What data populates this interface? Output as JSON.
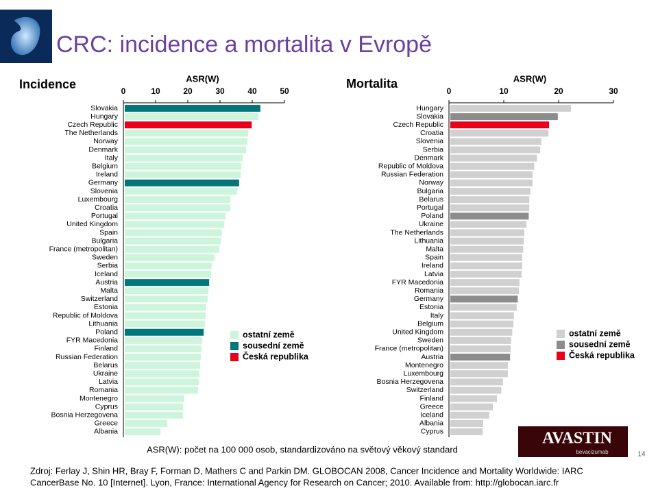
{
  "header": {
    "title": "CRC: incidence a mortalita v Evropě"
  },
  "chart_data": [
    {
      "type": "bar",
      "orientation": "horizontal",
      "title": "Incidence",
      "x_label": "ASR(W)",
      "xlim": [
        0,
        50
      ],
      "xticks": [
        0,
        10,
        20,
        30,
        40,
        50
      ],
      "categories": [
        "Slovakia",
        "Hungary",
        "Czech Republic",
        "The Netherlands",
        "Norway",
        "Denmark",
        "Italy",
        "Belgium",
        "Ireland",
        "Germany",
        "Slovenia",
        "Luxembourg",
        "Croatia",
        "Portugal",
        "United Kingdom",
        "Spain",
        "Bulgaria",
        "France (metropolitan)",
        "Sweden",
        "Serbia",
        "Iceland",
        "Austria",
        "Malta",
        "Switzerland",
        "Estonia",
        "Republic of Moldova",
        "Lithuania",
        "Poland",
        "FYR Macedonia",
        "Finland",
        "Russian Federation",
        "Belarus",
        "Ukraine",
        "Latvia",
        "Romania",
        "Montenegro",
        "Cyprus",
        "Bosnia Herzegovena",
        "Greece",
        "Albania"
      ],
      "values": [
        42.1,
        41.5,
        39.4,
        38.3,
        38.1,
        37.7,
        36.6,
        36.2,
        36.0,
        35.5,
        34.9,
        32.8,
        32.8,
        31.3,
        30.9,
        30.2,
        29.8,
        29.4,
        27.9,
        27.0,
        26.8,
        26.2,
        26.0,
        25.7,
        25.3,
        25.1,
        24.9,
        24.5,
        24.0,
        23.8,
        23.6,
        23.4,
        23.2,
        23.0,
        22.8,
        18.5,
        18.1,
        18.1,
        13.2,
        11.1
      ],
      "colors": [
        "#00777a",
        "#ccf5dc",
        "#e8001c",
        "#ccf5dc",
        "#ccf5dc",
        "#ccf5dc",
        "#ccf5dc",
        "#ccf5dc",
        "#ccf5dc",
        "#00777a",
        "#ccf5dc",
        "#ccf5dc",
        "#ccf5dc",
        "#ccf5dc",
        "#ccf5dc",
        "#ccf5dc",
        "#ccf5dc",
        "#ccf5dc",
        "#ccf5dc",
        "#ccf5dc",
        "#ccf5dc",
        "#00777a",
        "#ccf5dc",
        "#ccf5dc",
        "#ccf5dc",
        "#ccf5dc",
        "#ccf5dc",
        "#00777a",
        "#ccf5dc",
        "#ccf5dc",
        "#ccf5dc",
        "#ccf5dc",
        "#ccf5dc",
        "#ccf5dc",
        "#ccf5dc",
        "#ccf5dc",
        "#ccf5dc",
        "#ccf5dc",
        "#ccf5dc",
        "#ccf5dc"
      ],
      "legend": [
        {
          "label": "ostatní země",
          "color": "#ccf5dc"
        },
        {
          "label": "sousední země",
          "color": "#00777a"
        },
        {
          "label": "Česká republika",
          "color": "#e8001c"
        }
      ]
    },
    {
      "type": "bar",
      "orientation": "horizontal",
      "title": "Mortalita",
      "x_label": "ASR(W)",
      "xlim": [
        0,
        30
      ],
      "xticks": [
        0,
        10,
        20,
        30
      ],
      "categories": [
        "Hungary",
        "Slovakia",
        "Czech Republic",
        "Croatia",
        "Slovenia",
        "Serbia",
        "Denmark",
        "Republic of Moldova",
        "Russian Federation",
        "Norway",
        "Bulgaria",
        "Belarus",
        "Portugal",
        "Poland",
        "Ukraine",
        "The Netherlands",
        "Lithuania",
        "Malta",
        "Spain",
        "Ireland",
        "Latvia",
        "FYR Macedonia",
        "Romania",
        "Germany",
        "Estonia",
        "Italy",
        "Belgium",
        "United Kingdom",
        "Sweden",
        "France (metropolitan)",
        "Austria",
        "Montenegro",
        "Luxembourg",
        "Bosnia Herzegovena",
        "Switzerland",
        "Finland",
        "Greece",
        "Iceland",
        "Albania",
        "Cyprus"
      ],
      "values": [
        22.0,
        19.6,
        18.0,
        17.9,
        16.6,
        16.4,
        15.8,
        15.3,
        15.0,
        15.0,
        14.6,
        14.4,
        14.4,
        14.3,
        13.9,
        13.5,
        13.4,
        13.3,
        13.1,
        13.1,
        13.0,
        12.6,
        12.5,
        12.3,
        12.1,
        11.6,
        11.5,
        11.3,
        11.1,
        11.0,
        10.9,
        10.5,
        10.5,
        9.6,
        9.3,
        8.5,
        7.75,
        7.1,
        6.0,
        5.9
      ],
      "colors": [
        "#d0d0d0",
        "#8c8c8c",
        "#e8001c",
        "#d0d0d0",
        "#d0d0d0",
        "#d0d0d0",
        "#d0d0d0",
        "#d0d0d0",
        "#d0d0d0",
        "#d0d0d0",
        "#d0d0d0",
        "#d0d0d0",
        "#d0d0d0",
        "#8c8c8c",
        "#d0d0d0",
        "#d0d0d0",
        "#d0d0d0",
        "#d0d0d0",
        "#d0d0d0",
        "#d0d0d0",
        "#d0d0d0",
        "#d0d0d0",
        "#d0d0d0",
        "#8c8c8c",
        "#d0d0d0",
        "#d0d0d0",
        "#d0d0d0",
        "#d0d0d0",
        "#d0d0d0",
        "#d0d0d0",
        "#8c8c8c",
        "#d0d0d0",
        "#d0d0d0",
        "#d0d0d0",
        "#d0d0d0",
        "#d0d0d0",
        "#d0d0d0",
        "#d0d0d0",
        "#d0d0d0",
        "#d0d0d0"
      ],
      "legend": [
        {
          "label": "ostatní země",
          "color": "#d0d0d0"
        },
        {
          "label": "sousední země",
          "color": "#8c8c8c"
        },
        {
          "label": "Česká republika",
          "color": "#e8001c"
        }
      ]
    }
  ],
  "footnote": "ASR(W): počet na 100 000 osob, standardizováno na světový věkový standard",
  "source": [
    "Zdroj: Ferlay J, Shin HR, Bray F, Forman D, Mathers C and Parkin DM. GLOBOCAN 2008, Cancer Incidence and Mortality Worldwide: IARC",
    "CancerBase No. 10 [Internet]. Lyon, France: International Agency for Research on Cancer; 2010. Available from: http://globocan.iarc.fr"
  ],
  "logo": {
    "brand": "AVASTIN",
    "sub": "bevacizumab"
  },
  "page_number": "14"
}
